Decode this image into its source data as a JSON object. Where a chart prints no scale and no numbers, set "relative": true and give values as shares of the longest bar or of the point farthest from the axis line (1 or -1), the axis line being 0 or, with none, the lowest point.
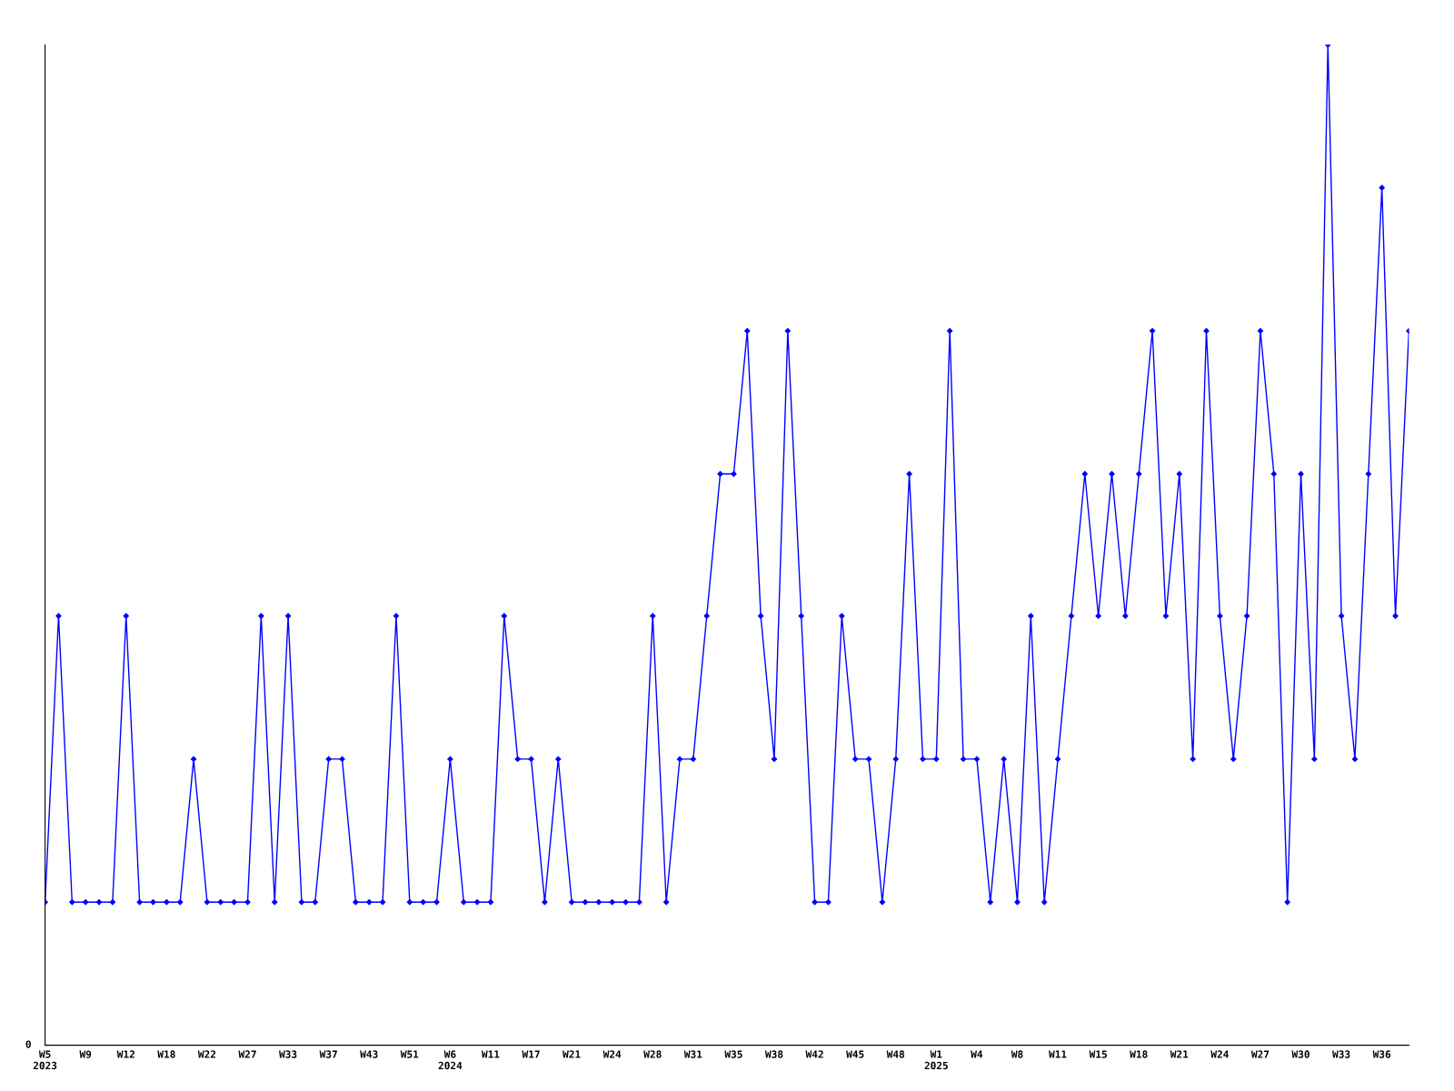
{
  "chart_data": {
    "type": "line",
    "relative": true,
    "categories": [
      "W5\n2023",
      null,
      null,
      "W9",
      null,
      null,
      "W12",
      null,
      null,
      "W18",
      null,
      null,
      "W22",
      null,
      null,
      "W27",
      null,
      null,
      "W33",
      null,
      null,
      "W37",
      null,
      null,
      "W43",
      null,
      null,
      "W51",
      null,
      null,
      "W6\n2024",
      null,
      null,
      "W11",
      null,
      null,
      "W17",
      null,
      null,
      "W21",
      null,
      null,
      "W24",
      null,
      null,
      "W28",
      null,
      null,
      "W31",
      null,
      null,
      "W35",
      null,
      null,
      "W38",
      null,
      null,
      "W42",
      null,
      null,
      "W45",
      null,
      null,
      "W48",
      null,
      null,
      "W1\n2025",
      null,
      null,
      "W4",
      null,
      null,
      "W8",
      null,
      null,
      "W11",
      null,
      null,
      "W15",
      null,
      null,
      "W18",
      null,
      null,
      "W21",
      null,
      null,
      "W24",
      null,
      null,
      "W27",
      null,
      null,
      "W30",
      null,
      null,
      "W33",
      null,
      null,
      "W36",
      null,
      null
    ],
    "series": [
      {
        "color": "#0000ff",
        "values": [
          0.143,
          0.429,
          0.143,
          0.143,
          0.143,
          0.143,
          0.429,
          0.143,
          0.143,
          0.143,
          0.143,
          0.286,
          0.143,
          0.143,
          0.143,
          0.143,
          0.429,
          0.143,
          0.429,
          0.143,
          0.143,
          0.286,
          0.286,
          0.143,
          0.143,
          0.143,
          0.429,
          0.143,
          0.143,
          0.143,
          0.286,
          0.143,
          0.143,
          0.143,
          0.429,
          0.286,
          0.286,
          0.143,
          0.286,
          0.143,
          0.143,
          0.143,
          0.143,
          0.143,
          0.143,
          0.429,
          0.143,
          0.286,
          0.286,
          0.429,
          0.571,
          0.571,
          0.714,
          0.429,
          0.286,
          0.714,
          0.429,
          0.143,
          0.143,
          0.429,
          0.286,
          0.286,
          0.143,
          0.286,
          0.571,
          0.286,
          0.286,
          0.714,
          0.286,
          0.286,
          0.143,
          0.286,
          0.143,
          0.429,
          0.143,
          0.286,
          0.429,
          0.571,
          0.429,
          0.571,
          0.429,
          0.571,
          0.714,
          0.429,
          0.571,
          0.286,
          0.714,
          0.429,
          0.286,
          0.429,
          0.714,
          0.571,
          0.143,
          0.571,
          0.286,
          1,
          0.429,
          0.286,
          0.571,
          0.857,
          0.429,
          0.714
        ]
      }
    ],
    "annotations": [
      "0"
    ],
    "grid": false,
    "legend": false,
    "marker": "diamond",
    "line_style": "solid"
  }
}
